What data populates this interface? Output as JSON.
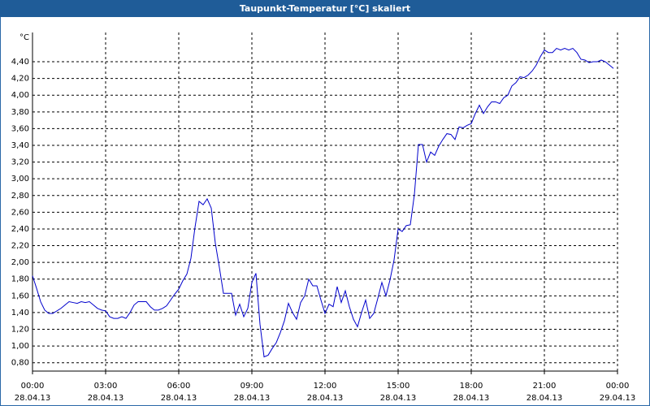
{
  "chart_data": {
    "type": "line",
    "title": "Taupunkt-Temperatur [°C] skaliert",
    "y_unit": "°C",
    "x": [
      0,
      10,
      20,
      30,
      40,
      50,
      60,
      70,
      80,
      90,
      100,
      110,
      120,
      130,
      140,
      150,
      160,
      170,
      180,
      190,
      200,
      210,
      220,
      230,
      240,
      250,
      260,
      270,
      280,
      290,
      300,
      310,
      320,
      330,
      340,
      350,
      360,
      370,
      380,
      390,
      400,
      410,
      420,
      430,
      440,
      450,
      460,
      470,
      480,
      490,
      500,
      510,
      520,
      530,
      540,
      550,
      560,
      570,
      580,
      590,
      600,
      610,
      620,
      630,
      640,
      650,
      660,
      670,
      680,
      690,
      700,
      710,
      720,
      730,
      740,
      750,
      760,
      770,
      780,
      790,
      800,
      810,
      820,
      830,
      840,
      850,
      860,
      870,
      880,
      890,
      900,
      910,
      920,
      930,
      940,
      950,
      960,
      970,
      980,
      990,
      1000,
      1010,
      1020,
      1030,
      1040,
      1050,
      1060,
      1070,
      1080,
      1090,
      1100,
      1110,
      1120,
      1130,
      1140,
      1150,
      1160,
      1170,
      1180,
      1190,
      1200,
      1210,
      1220,
      1230,
      1240,
      1250,
      1260,
      1270,
      1280,
      1290,
      1300,
      1310,
      1320,
      1330,
      1340,
      1350,
      1360,
      1370,
      1380,
      1390,
      1400,
      1410,
      1420,
      1430
    ],
    "series": [
      {
        "color": "#0000cc",
        "values": [
          1.84,
          1.69,
          1.53,
          1.43,
          1.39,
          1.39,
          1.42,
          1.45,
          1.49,
          1.53,
          1.52,
          1.51,
          1.53,
          1.52,
          1.53,
          1.49,
          1.45,
          1.43,
          1.42,
          1.35,
          1.33,
          1.33,
          1.35,
          1.33,
          1.4,
          1.49,
          1.53,
          1.53,
          1.53,
          1.47,
          1.43,
          1.43,
          1.45,
          1.48,
          1.55,
          1.62,
          1.68,
          1.78,
          1.86,
          2.05,
          2.42,
          2.73,
          2.69,
          2.76,
          2.65,
          2.23,
          1.94,
          1.63,
          1.63,
          1.63,
          1.37,
          1.5,
          1.35,
          1.45,
          1.76,
          1.87,
          1.26,
          0.87,
          0.89,
          0.97,
          1.04,
          1.16,
          1.3,
          1.51,
          1.4,
          1.32,
          1.52,
          1.6,
          1.8,
          1.72,
          1.72,
          1.55,
          1.39,
          1.5,
          1.47,
          1.71,
          1.52,
          1.66,
          1.47,
          1.32,
          1.23,
          1.4,
          1.55,
          1.33,
          1.39,
          1.57,
          1.76,
          1.6,
          1.79,
          2.03,
          2.4,
          2.37,
          2.44,
          2.45,
          2.81,
          3.41,
          3.41,
          3.2,
          3.32,
          3.28,
          3.39,
          3.47,
          3.54,
          3.53,
          3.47,
          3.62,
          3.61,
          3.64,
          3.66,
          3.78,
          3.88,
          3.78,
          3.86,
          3.92,
          3.92,
          3.9,
          3.97,
          4.0,
          4.11,
          4.15,
          4.22,
          4.21,
          4.24,
          4.29,
          4.36,
          4.46,
          4.54,
          4.51,
          4.51,
          4.56,
          4.54,
          4.56,
          4.54,
          4.56,
          4.51,
          4.43,
          4.42,
          4.39,
          4.4,
          4.4,
          4.42,
          4.4,
          4.36,
          4.32
        ]
      }
    ],
    "xlim": [
      0,
      1440
    ],
    "xticks": [
      {
        "value": 0,
        "label": "00:00"
      },
      {
        "value": 180,
        "label": "03:00"
      },
      {
        "value": 360,
        "label": "06:00"
      },
      {
        "value": 540,
        "label": "09:00"
      },
      {
        "value": 720,
        "label": "12:00"
      },
      {
        "value": 900,
        "label": "15:00"
      },
      {
        "value": 1080,
        "label": "18:00"
      },
      {
        "value": 1260,
        "label": "21:00"
      },
      {
        "value": 1440,
        "label": "00:00"
      }
    ],
    "xtick_dates": [
      "28.04.13",
      "28.04.13",
      "28.04.13",
      "28.04.13",
      "28.04.13",
      "28.04.13",
      "28.04.13",
      "28.04.13",
      "29.04.13"
    ],
    "ylim": [
      0.7,
      4.75
    ],
    "yticks": [
      {
        "value": 0.8,
        "label": "0,80"
      },
      {
        "value": 1.0,
        "label": "1,00"
      },
      {
        "value": 1.2,
        "label": "1,20"
      },
      {
        "value": 1.4,
        "label": "1,40"
      },
      {
        "value": 1.6,
        "label": "1,60"
      },
      {
        "value": 1.8,
        "label": "1,80"
      },
      {
        "value": 2.0,
        "label": "2,00"
      },
      {
        "value": 2.2,
        "label": "2,20"
      },
      {
        "value": 2.4,
        "label": "2,40"
      },
      {
        "value": 2.6,
        "label": "2,60"
      },
      {
        "value": 2.8,
        "label": "2,80"
      },
      {
        "value": 3.0,
        "label": "3,00"
      },
      {
        "value": 3.2,
        "label": "3,20"
      },
      {
        "value": 3.4,
        "label": "3,40"
      },
      {
        "value": 3.6,
        "label": "3,60"
      },
      {
        "value": 3.8,
        "label": "3,80"
      },
      {
        "value": 4.0,
        "label": "4,00"
      },
      {
        "value": 4.2,
        "label": "4,20"
      },
      {
        "value": 4.4,
        "label": "4,40"
      }
    ],
    "grid": true
  }
}
